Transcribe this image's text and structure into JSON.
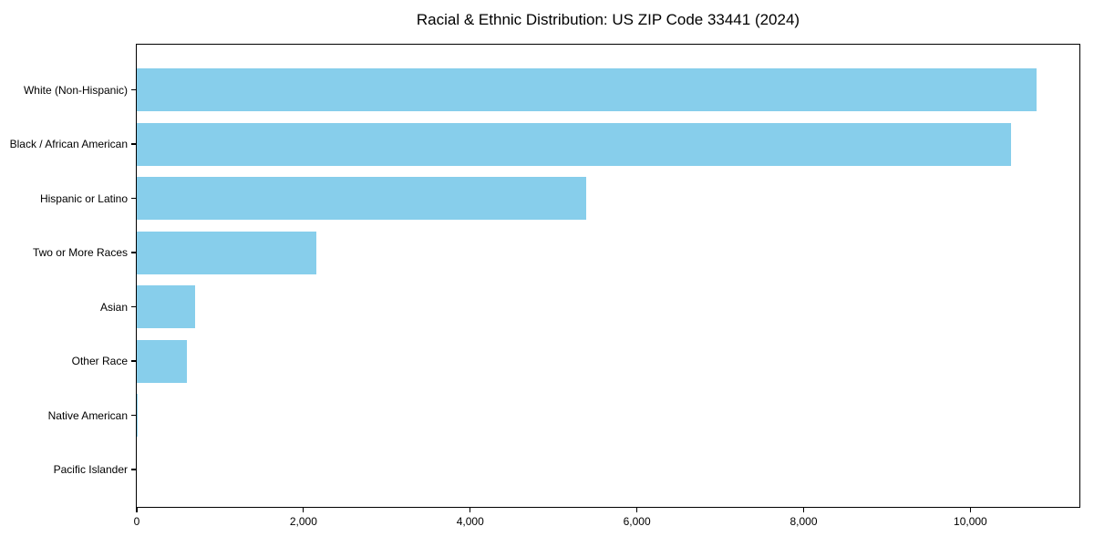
{
  "chart_data": {
    "type": "bar",
    "orientation": "horizontal",
    "title": "Racial & Ethnic Distribution: US ZIP Code 33441 (2024)",
    "categories": [
      "White (Non-Hispanic)",
      "Black / African American",
      "Hispanic or Latino",
      "Two or More Races",
      "Asian",
      "Other Race",
      "Native American",
      "Pacific Islander"
    ],
    "values": [
      10790,
      10490,
      5390,
      2150,
      700,
      600,
      10,
      0
    ],
    "bar_color": "#87CEEB",
    "axis_color": "#000000",
    "text_color": "#000000",
    "background_color": "#ffffff",
    "xlabel": "",
    "ylabel": "",
    "xlim": [
      0,
      11330
    ],
    "x_ticks": [
      {
        "value": 0,
        "label": "0"
      },
      {
        "value": 2000,
        "label": "2,000"
      },
      {
        "value": 4000,
        "label": "4,000"
      },
      {
        "value": 6000,
        "label": "6,000"
      },
      {
        "value": 8000,
        "label": "8,000"
      },
      {
        "value": 10000,
        "label": "10,000"
      }
    ],
    "grid": false,
    "legend": null
  }
}
